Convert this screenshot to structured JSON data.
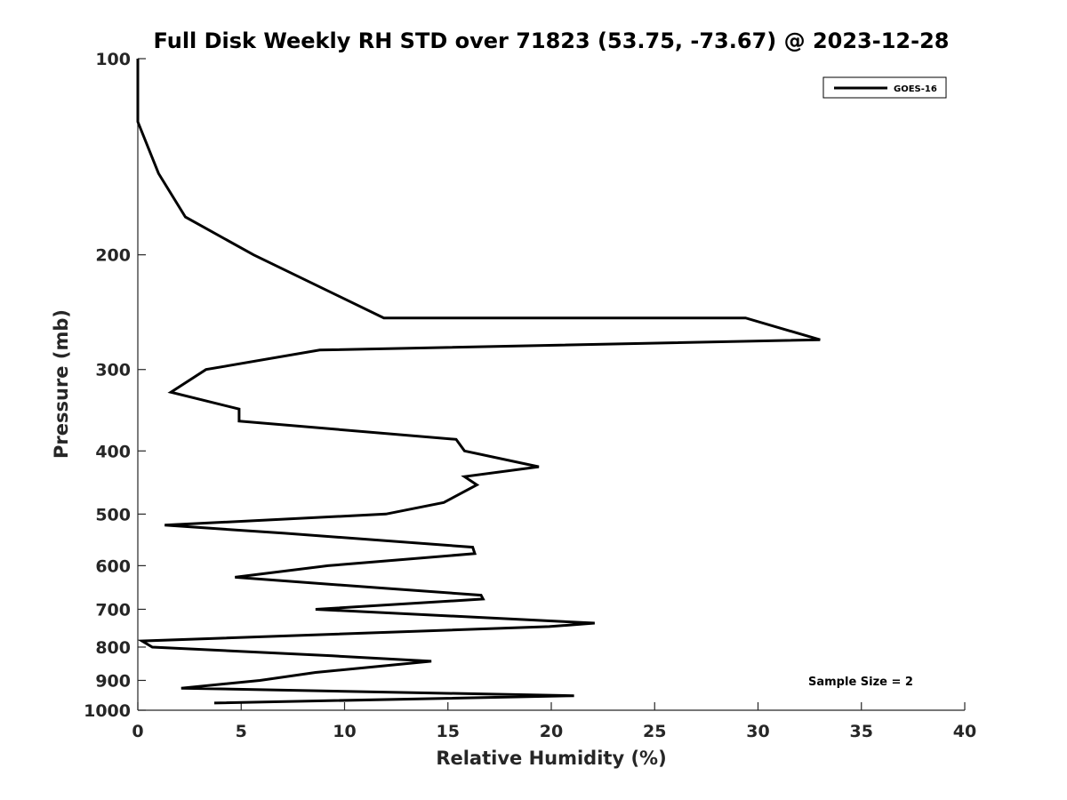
{
  "chart_data": {
    "type": "line",
    "title": "Full Disk Weekly RH STD over 71823 (53.75, -73.67) @ 2023-12-28",
    "xlabel": "Relative Humidity (%)",
    "ylabel": "Pressure (mb)",
    "xlim": [
      0,
      40
    ],
    "ylim": [
      1000,
      100
    ],
    "yscale": "log",
    "xticks": [
      0,
      5,
      10,
      15,
      20,
      25,
      30,
      35,
      40
    ],
    "yticks": [
      100,
      200,
      300,
      400,
      500,
      600,
      700,
      800,
      900,
      1000
    ],
    "grid": false,
    "legend_position": "top-right",
    "annotation": "Sample Size = 2",
    "series": [
      {
        "name": "GOES-16",
        "color": "#000000",
        "points": [
          [
            0.0,
            100
          ],
          [
            0.0,
            125
          ],
          [
            1.0,
            150
          ],
          [
            2.3,
            175
          ],
          [
            5.6,
            200
          ],
          [
            11.9,
            250
          ],
          [
            29.4,
            250
          ],
          [
            33.0,
            270
          ],
          [
            8.8,
            280
          ],
          [
            3.3,
            300
          ],
          [
            1.6,
            325
          ],
          [
            4.9,
            345
          ],
          [
            4.9,
            360
          ],
          [
            15.4,
            384
          ],
          [
            15.8,
            400
          ],
          [
            19.4,
            423
          ],
          [
            15.8,
            438
          ],
          [
            16.4,
            451
          ],
          [
            14.8,
            480
          ],
          [
            12.0,
            500
          ],
          [
            1.3,
            520
          ],
          [
            7.1,
            535
          ],
          [
            16.2,
            562
          ],
          [
            16.3,
            575
          ],
          [
            9.2,
            600
          ],
          [
            4.7,
            625
          ],
          [
            12.0,
            650
          ],
          [
            16.6,
            666
          ],
          [
            16.7,
            675
          ],
          [
            8.6,
            700
          ],
          [
            22.1,
            735
          ],
          [
            19.9,
            744
          ],
          [
            0.2,
            783
          ],
          [
            0.7,
            800
          ],
          [
            9.4,
            825
          ],
          [
            14.2,
            841
          ],
          [
            8.6,
            875
          ],
          [
            5.9,
            900
          ],
          [
            2.1,
            925
          ],
          [
            21.1,
            950
          ],
          [
            3.7,
            975
          ]
        ]
      }
    ]
  }
}
